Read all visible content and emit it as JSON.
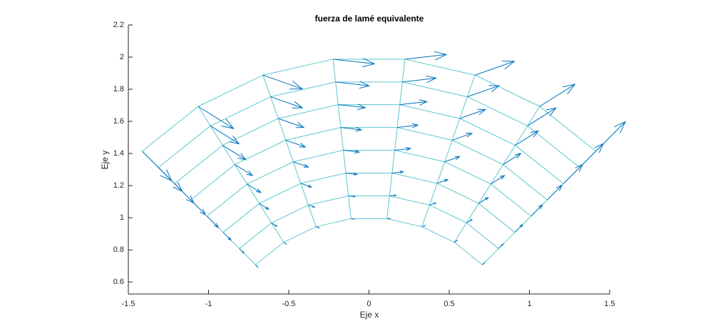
{
  "chart_data": {
    "type": "quiver",
    "title": "fuerza de lamé equivalente",
    "xlabel": "Eje x",
    "ylabel": "Eje y",
    "xlim": [
      -1.5,
      1.5
    ],
    "ylim": [
      0.525,
      2.2
    ],
    "xticks": [
      -1.5,
      -1,
      -0.5,
      0,
      0.5,
      1,
      1.5
    ],
    "yticks": [
      0.6,
      0.8,
      1,
      1.2,
      1.4,
      1.6,
      1.8,
      2,
      2.2
    ],
    "mesh_color": "#5cc6d0",
    "color": "#0072bd",
    "x": [
      [
        0.707,
        0.532,
        0.33,
        0.112,
        -0.112,
        -0.33,
        -0.532,
        -0.707
      ],
      [
        0.808,
        0.608,
        0.378,
        0.128,
        -0.128,
        -0.378,
        -0.608,
        -0.808
      ],
      [
        0.909,
        0.684,
        0.425,
        0.144,
        -0.144,
        -0.425,
        -0.684,
        -0.909
      ],
      [
        1.01,
        0.76,
        0.472,
        0.16,
        -0.16,
        -0.472,
        -0.76,
        -1.01
      ],
      [
        1.111,
        0.836,
        0.519,
        0.176,
        -0.176,
        -0.519,
        -0.836,
        -1.111
      ],
      [
        1.212,
        0.912,
        0.566,
        0.192,
        -0.192,
        -0.566,
        -0.912,
        -1.212
      ],
      [
        1.313,
        0.988,
        0.613,
        0.208,
        -0.208,
        -0.613,
        -0.988,
        -1.313
      ],
      [
        1.414,
        1.064,
        0.661,
        0.224,
        -0.224,
        -0.661,
        -1.064,
        -1.414
      ]
    ],
    "y": [
      [
        0.707,
        0.847,
        0.944,
        0.994,
        0.994,
        0.944,
        0.847,
        0.707
      ],
      [
        0.808,
        0.968,
        1.079,
        1.136,
        1.136,
        1.079,
        0.968,
        0.808
      ],
      [
        0.909,
        1.089,
        1.214,
        1.278,
        1.278,
        1.214,
        1.089,
        0.909
      ],
      [
        1.01,
        1.21,
        1.348,
        1.42,
        1.42,
        1.348,
        1.21,
        1.01
      ],
      [
        1.111,
        1.331,
        1.483,
        1.562,
        1.562,
        1.483,
        1.331,
        1.111
      ],
      [
        1.212,
        1.451,
        1.618,
        1.704,
        1.704,
        1.618,
        1.451,
        1.212
      ],
      [
        1.313,
        1.572,
        1.753,
        1.845,
        1.845,
        1.753,
        1.572,
        1.313
      ],
      [
        1.414,
        1.693,
        1.888,
        1.987,
        1.987,
        1.888,
        1.693,
        1.414
      ]
    ],
    "u": [
      [
        0.014,
        0.017,
        0.019,
        0.02,
        0.02,
        0.019,
        0.017,
        0.014
      ],
      [
        0.028,
        0.034,
        0.038,
        0.04,
        0.04,
        0.038,
        0.034,
        0.028
      ],
      [
        0.049,
        0.059,
        0.066,
        0.07,
        0.07,
        0.066,
        0.059,
        0.049
      ],
      [
        0.071,
        0.085,
        0.094,
        0.099,
        0.099,
        0.094,
        0.085,
        0.071
      ],
      [
        0.092,
        0.11,
        0.123,
        0.129,
        0.129,
        0.123,
        0.11,
        0.092
      ],
      [
        0.12,
        0.144,
        0.16,
        0.169,
        0.169,
        0.16,
        0.144,
        0.12
      ],
      [
        0.148,
        0.178,
        0.198,
        0.209,
        0.209,
        0.198,
        0.178,
        0.148
      ],
      [
        0.184,
        0.22,
        0.245,
        0.258,
        0.258,
        0.245,
        0.22,
        0.184
      ]
    ],
    "v": [
      [
        0.014,
        0.011,
        0.007,
        0.002,
        -0.002,
        -0.007,
        -0.011,
        -0.014
      ],
      [
        0.028,
        0.021,
        0.013,
        0.004,
        -0.004,
        -0.013,
        -0.021,
        -0.028
      ],
      [
        0.049,
        0.037,
        0.023,
        0.008,
        -0.008,
        -0.023,
        -0.037,
        -0.049
      ],
      [
        0.071,
        0.053,
        0.033,
        0.011,
        -0.011,
        -0.033,
        -0.053,
        -0.071
      ],
      [
        0.092,
        0.069,
        0.043,
        0.015,
        -0.015,
        -0.043,
        -0.069,
        -0.092
      ],
      [
        0.12,
        0.09,
        0.056,
        0.019,
        -0.019,
        -0.056,
        -0.09,
        -0.12
      ],
      [
        0.148,
        0.112,
        0.069,
        0.024,
        -0.024,
        -0.069,
        -0.112,
        -0.148
      ],
      [
        0.184,
        0.138,
        0.086,
        0.029,
        -0.029,
        -0.086,
        -0.138,
        -0.184
      ]
    ]
  }
}
